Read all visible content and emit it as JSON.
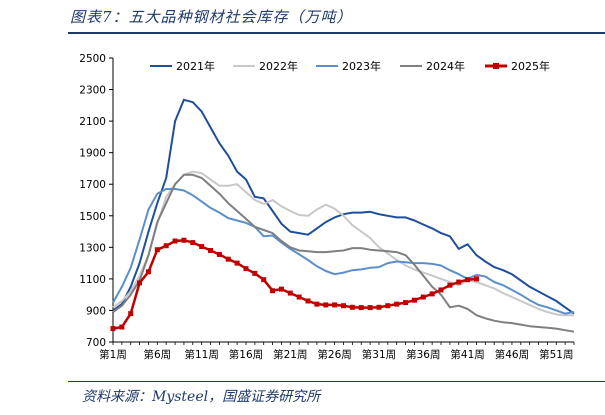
{
  "figure": {
    "title": "图表7：五大品种钢材社会库存（万吨）",
    "source": "资料来源：Mysteel，国盛证券研究所"
  },
  "chart_data": {
    "type": "line",
    "title": "图表7：五大品种钢材社会库存（万吨）",
    "unit": "万吨",
    "ylim": [
      700,
      2500
    ],
    "yticks": [
      700,
      900,
      1100,
      1300,
      1500,
      1700,
      1900,
      2100,
      2300,
      2500
    ],
    "xlim": [
      1,
      53
    ],
    "xticks": [
      {
        "week": 1,
        "label": "第1周"
      },
      {
        "week": 6,
        "label": "第6周"
      },
      {
        "week": 11,
        "label": "第11周"
      },
      {
        "week": 16,
        "label": "第16周"
      },
      {
        "week": 21,
        "label": "第21周"
      },
      {
        "week": 26,
        "label": "第26周"
      },
      {
        "week": 31,
        "label": "第31周"
      },
      {
        "week": 36,
        "label": "第36周"
      },
      {
        "week": 41,
        "label": "第41周"
      },
      {
        "week": 46,
        "label": "第46周"
      },
      {
        "week": 51,
        "label": "第51周"
      }
    ],
    "grid": false,
    "legend": "top",
    "series": [
      {
        "name": "2021年",
        "color": "#1f4e9c",
        "values": [
          900,
          940,
          1050,
          1200,
          1400,
          1580,
          1740,
          2100,
          2235,
          2220,
          2160,
          2060,
          1960,
          1880,
          1780,
          1730,
          1620,
          1610,
          1530,
          1450,
          1400,
          1390,
          1380,
          1420,
          1460,
          1490,
          1510,
          1520,
          1520,
          1525,
          1510,
          1500,
          1490,
          1490,
          1470,
          1445,
          1420,
          1390,
          1370,
          1290,
          1320,
          1250,
          1210,
          1175,
          1155,
          1130,
          1090,
          1050,
          1020,
          990,
          960,
          920,
          880
        ]
      },
      {
        "name": "2022年",
        "color": "#c8c8c8",
        "values": [
          920,
          960,
          1020,
          1120,
          1250,
          1450,
          1620,
          1700,
          1760,
          1780,
          1770,
          1730,
          1690,
          1690,
          1700,
          1650,
          1600,
          1575,
          1600,
          1560,
          1530,
          1505,
          1500,
          1540,
          1570,
          1545,
          1500,
          1440,
          1400,
          1360,
          1300,
          1260,
          1220,
          1185,
          1160,
          1140,
          1120,
          1100,
          1080,
          1060,
          1090,
          1080,
          1060,
          1040,
          1010,
          985,
          960,
          935,
          910,
          890,
          875,
          870,
          870
        ]
      },
      {
        "name": "2023年",
        "color": "#5b8fcc",
        "values": [
          950,
          1050,
          1170,
          1350,
          1540,
          1640,
          1670,
          1670,
          1660,
          1630,
          1590,
          1550,
          1520,
          1485,
          1470,
          1455,
          1430,
          1370,
          1375,
          1330,
          1290,
          1255,
          1220,
          1180,
          1150,
          1130,
          1140,
          1155,
          1160,
          1170,
          1175,
          1200,
          1210,
          1205,
          1200,
          1200,
          1195,
          1185,
          1155,
          1130,
          1100,
          1125,
          1115,
          1080,
          1060,
          1030,
          1000,
          965,
          935,
          920,
          900,
          880,
          890
        ]
      },
      {
        "name": "2024年",
        "color": "#7f7f7f",
        "values": [
          890,
          930,
          1000,
          1090,
          1250,
          1460,
          1580,
          1700,
          1760,
          1760,
          1740,
          1690,
          1640,
          1580,
          1530,
          1480,
          1430,
          1410,
          1390,
          1340,
          1300,
          1280,
          1275,
          1270,
          1270,
          1275,
          1280,
          1295,
          1295,
          1285,
          1280,
          1275,
          1270,
          1250,
          1190,
          1120,
          1050,
          1000,
          920,
          930,
          910,
          870,
          850,
          835,
          825,
          820,
          810,
          800,
          795,
          790,
          785,
          775,
          765
        ]
      },
      {
        "name": "2025年",
        "color": "#c00000",
        "values": [
          785,
          795,
          880,
          1075,
          1145,
          1285,
          1310,
          1340,
          1345,
          1330,
          1305,
          1280,
          1255,
          1225,
          1200,
          1165,
          1135,
          1095,
          1025,
          1035,
          1010,
          985,
          960,
          940,
          935,
          935,
          930,
          920,
          918,
          918,
          920,
          930,
          940,
          950,
          965,
          985,
          1005,
          1030,
          1060,
          1080,
          1095,
          1100
        ]
      }
    ]
  }
}
